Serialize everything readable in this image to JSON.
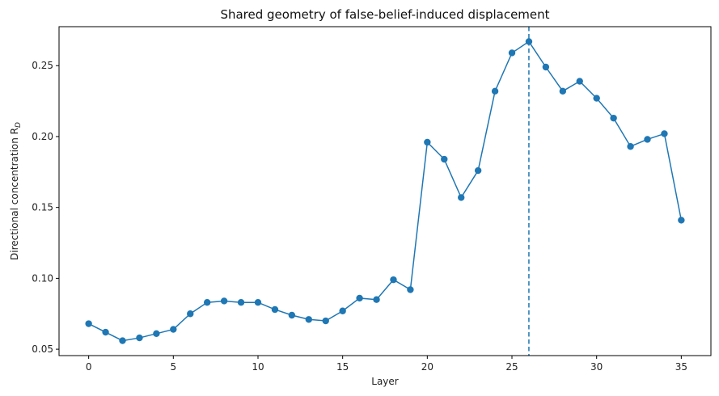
{
  "chart_data": {
    "type": "line",
    "title": "Shared geometry of false-belief-induced displacement",
    "xlabel": "Layer",
    "ylabel": "Directional concentration R",
    "ylabel_subscript": "D",
    "xlim": [
      -1.75,
      36.75
    ],
    "ylim": [
      0.0455,
      0.2775
    ],
    "x_ticks": [
      0,
      5,
      10,
      15,
      20,
      25,
      30,
      35
    ],
    "y_ticks": [
      0.05,
      0.1,
      0.15,
      0.2,
      0.25
    ],
    "y_tick_labels": [
      "0.05",
      "0.10",
      "0.15",
      "0.20",
      "0.25"
    ],
    "grid": false,
    "vline_x": 26,
    "color": "#1f77b4",
    "series": [
      {
        "x": [
          0,
          1,
          2,
          3,
          4,
          5,
          6,
          7,
          8,
          9,
          10,
          11,
          12,
          13,
          14,
          15,
          16,
          17,
          18,
          19,
          20,
          21,
          22,
          23,
          24,
          25,
          26,
          27,
          28,
          29,
          30,
          31,
          32,
          33,
          34,
          35
        ],
        "y": [
          0.068,
          0.062,
          0.056,
          0.058,
          0.061,
          0.064,
          0.075,
          0.083,
          0.084,
          0.083,
          0.083,
          0.078,
          0.074,
          0.071,
          0.07,
          0.077,
          0.086,
          0.085,
          0.099,
          0.092,
          0.196,
          0.184,
          0.157,
          0.176,
          0.232,
          0.259,
          0.267,
          0.249,
          0.232,
          0.239,
          0.227,
          0.213,
          0.193,
          0.198,
          0.202,
          0.141
        ]
      }
    ]
  }
}
